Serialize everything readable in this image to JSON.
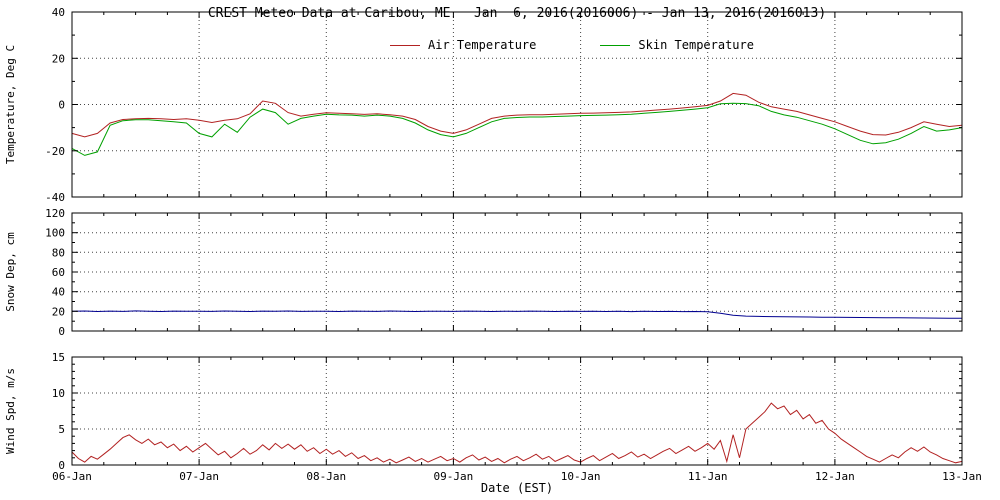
{
  "x_axis": {
    "label": "Date (EST)",
    "range": [
      0,
      7
    ],
    "minor_step": 0.25,
    "tick_positions": [
      0,
      1,
      2,
      3,
      4,
      5,
      6,
      7
    ],
    "tick_labels": [
      "06-Jan",
      "07-Jan",
      "08-Jan",
      "09-Jan",
      "10-Jan",
      "11-Jan",
      "12-Jan",
      "13-Jan"
    ]
  },
  "chart_data": [
    {
      "type": "line",
      "title": "CREST Meteo Data at Caribou, ME   Jan  6, 2016(2016006) - Jan 13, 2016(2016013)",
      "ylabel": "Temperature, Deg C",
      "ylim": [
        -40,
        40
      ],
      "yticks": [
        -40,
        -20,
        0,
        20,
        40
      ],
      "y_minor": 10,
      "grid": "dotted",
      "legend_position": "top-inside",
      "x_unit": "days since 06-Jan-2016 00:00 EST",
      "series": [
        {
          "name": "Air Temperature",
          "color": "#b22222",
          "x0": 0,
          "dx": 0.1,
          "values": [
            -12.5,
            -14,
            -12.5,
            -8,
            -6.5,
            -6.2,
            -6,
            -6.2,
            -6.5,
            -6.2,
            -6.8,
            -7.8,
            -6.8,
            -6.2,
            -4,
            1.5,
            0.5,
            -3.5,
            -5,
            -4.2,
            -3.6,
            -3.8,
            -4,
            -4.3,
            -4,
            -4.4,
            -5,
            -6.5,
            -9.5,
            -11.5,
            -12.5,
            -11,
            -8.5,
            -6,
            -5,
            -4.6,
            -4.4,
            -4.4,
            -4.2,
            -4,
            -3.8,
            -3.7,
            -3.6,
            -3.4,
            -3.2,
            -2.8,
            -2.4,
            -2,
            -1.5,
            -1,
            -0.4,
            1.5,
            4.8,
            4,
            1,
            -1,
            -2,
            -3,
            -4.5,
            -6,
            -7.5,
            -9.5,
            -11.5,
            -13,
            -13.2,
            -12,
            -10,
            -7.5,
            -8.5,
            -9.5,
            -9
          ]
        },
        {
          "name": "Skin Temperature",
          "color": "#00a000",
          "x0": 0,
          "dx": 0.1,
          "values": [
            -19,
            -22,
            -20.5,
            -9,
            -7,
            -6.6,
            -6.6,
            -7,
            -7.5,
            -8,
            -12.5,
            -14,
            -8.5,
            -12,
            -5.5,
            -2,
            -3.5,
            -8.5,
            -6,
            -5,
            -4.2,
            -4.5,
            -4.6,
            -5,
            -4.6,
            -5,
            -6,
            -8,
            -11,
            -13,
            -14,
            -12.5,
            -10,
            -7.5,
            -6,
            -5.6,
            -5.4,
            -5.4,
            -5.2,
            -5,
            -4.8,
            -4.7,
            -4.6,
            -4.4,
            -4.2,
            -3.8,
            -3.4,
            -3,
            -2.5,
            -2,
            -1.4,
            0.3,
            0.5,
            0.4,
            -0.5,
            -3,
            -4.5,
            -5.5,
            -7,
            -8.5,
            -10.5,
            -13,
            -15.5,
            -17,
            -16.5,
            -15,
            -12.5,
            -9.5,
            -11.5,
            -11,
            -10
          ]
        }
      ]
    },
    {
      "type": "line",
      "ylabel": "Snow Dep, cm",
      "ylim": [
        0,
        120
      ],
      "yticks": [
        0,
        20,
        40,
        60,
        80,
        100,
        120
      ],
      "y_minor": 10,
      "grid": "dotted",
      "series": [
        {
          "name": "Snow Depth",
          "color": "#000090",
          "x0": 0,
          "dx": 0.1,
          "values": [
            20,
            20.3,
            19.8,
            20.2,
            19.9,
            20.4,
            20.1,
            19.8,
            20.2,
            20,
            20.1,
            19.9,
            20.3,
            20,
            19.8,
            20.2,
            20,
            20.3,
            19.9,
            20.1,
            20,
            19.8,
            20.2,
            20.1,
            19.9,
            20.3,
            20,
            19.8,
            20.1,
            20,
            19.9,
            20.2,
            20,
            19.8,
            20.1,
            19.9,
            20.2,
            20,
            19.8,
            20,
            19.9,
            20.1,
            19.8,
            20,
            19.7,
            20,
            19.8,
            19.9,
            19.7,
            19.8,
            19.5,
            18,
            16,
            15.2,
            14.8,
            14.6,
            14.4,
            14.3,
            14.2,
            14,
            13.9,
            13.8,
            13.7,
            13.6,
            13.5,
            13.4,
            13.3,
            13.2,
            13.1,
            13,
            12.9
          ]
        }
      ]
    },
    {
      "type": "line",
      "xlabel": "Date (EST)",
      "ylabel": "Wind Spd, m/s",
      "ylim": [
        0,
        15
      ],
      "yticks": [
        0,
        5,
        10,
        15
      ],
      "y_minor": 1,
      "grid": "dotted",
      "series": [
        {
          "name": "Wind Speed",
          "color": "#b22222",
          "x0": 0,
          "dx": 0.05,
          "values": [
            1.8,
            0.9,
            0.4,
            1.2,
            0.8,
            1.5,
            2.2,
            3.0,
            3.8,
            4.2,
            3.5,
            3.0,
            3.6,
            2.8,
            3.2,
            2.4,
            2.9,
            2.0,
            2.6,
            1.8,
            2.4,
            3.0,
            2.2,
            1.4,
            1.9,
            1.0,
            1.6,
            2.3,
            1.5,
            2.0,
            2.8,
            2.1,
            3.0,
            2.3,
            2.9,
            2.2,
            2.8,
            1.9,
            2.4,
            1.6,
            2.2,
            1.5,
            2.0,
            1.2,
            1.7,
            0.9,
            1.3,
            0.6,
            1.0,
            0.4,
            0.8,
            0.3,
            0.7,
            1.1,
            0.5,
            0.9,
            0.4,
            0.8,
            1.2,
            0.6,
            0.9,
            0.4,
            1.0,
            1.4,
            0.7,
            1.1,
            0.5,
            0.9,
            0.3,
            0.8,
            1.2,
            0.6,
            1.0,
            1.5,
            0.8,
            1.2,
            0.5,
            0.9,
            1.3,
            0.7,
            0.4,
            0.9,
            1.3,
            0.6,
            1.1,
            1.6,
            0.9,
            1.3,
            1.8,
            1.1,
            1.5,
            0.9,
            1.4,
            1.9,
            2.3,
            1.6,
            2.1,
            2.6,
            1.9,
            2.4,
            3.0,
            2.2,
            3.4,
            0.5,
            4.2,
            1.0,
            5.0,
            5.8,
            6.6,
            7.4,
            8.6,
            7.8,
            8.2,
            7.0,
            7.6,
            6.4,
            7.0,
            5.8,
            6.2,
            5.0,
            4.4,
            3.6,
            3.0,
            2.4,
            1.8,
            1.2,
            0.8,
            0.4,
            0.9,
            1.4,
            1.0,
            1.8,
            2.4,
            1.9,
            2.5,
            1.8,
            1.4,
            0.9,
            0.6,
            0.3,
            0.5
          ]
        }
      ]
    }
  ]
}
